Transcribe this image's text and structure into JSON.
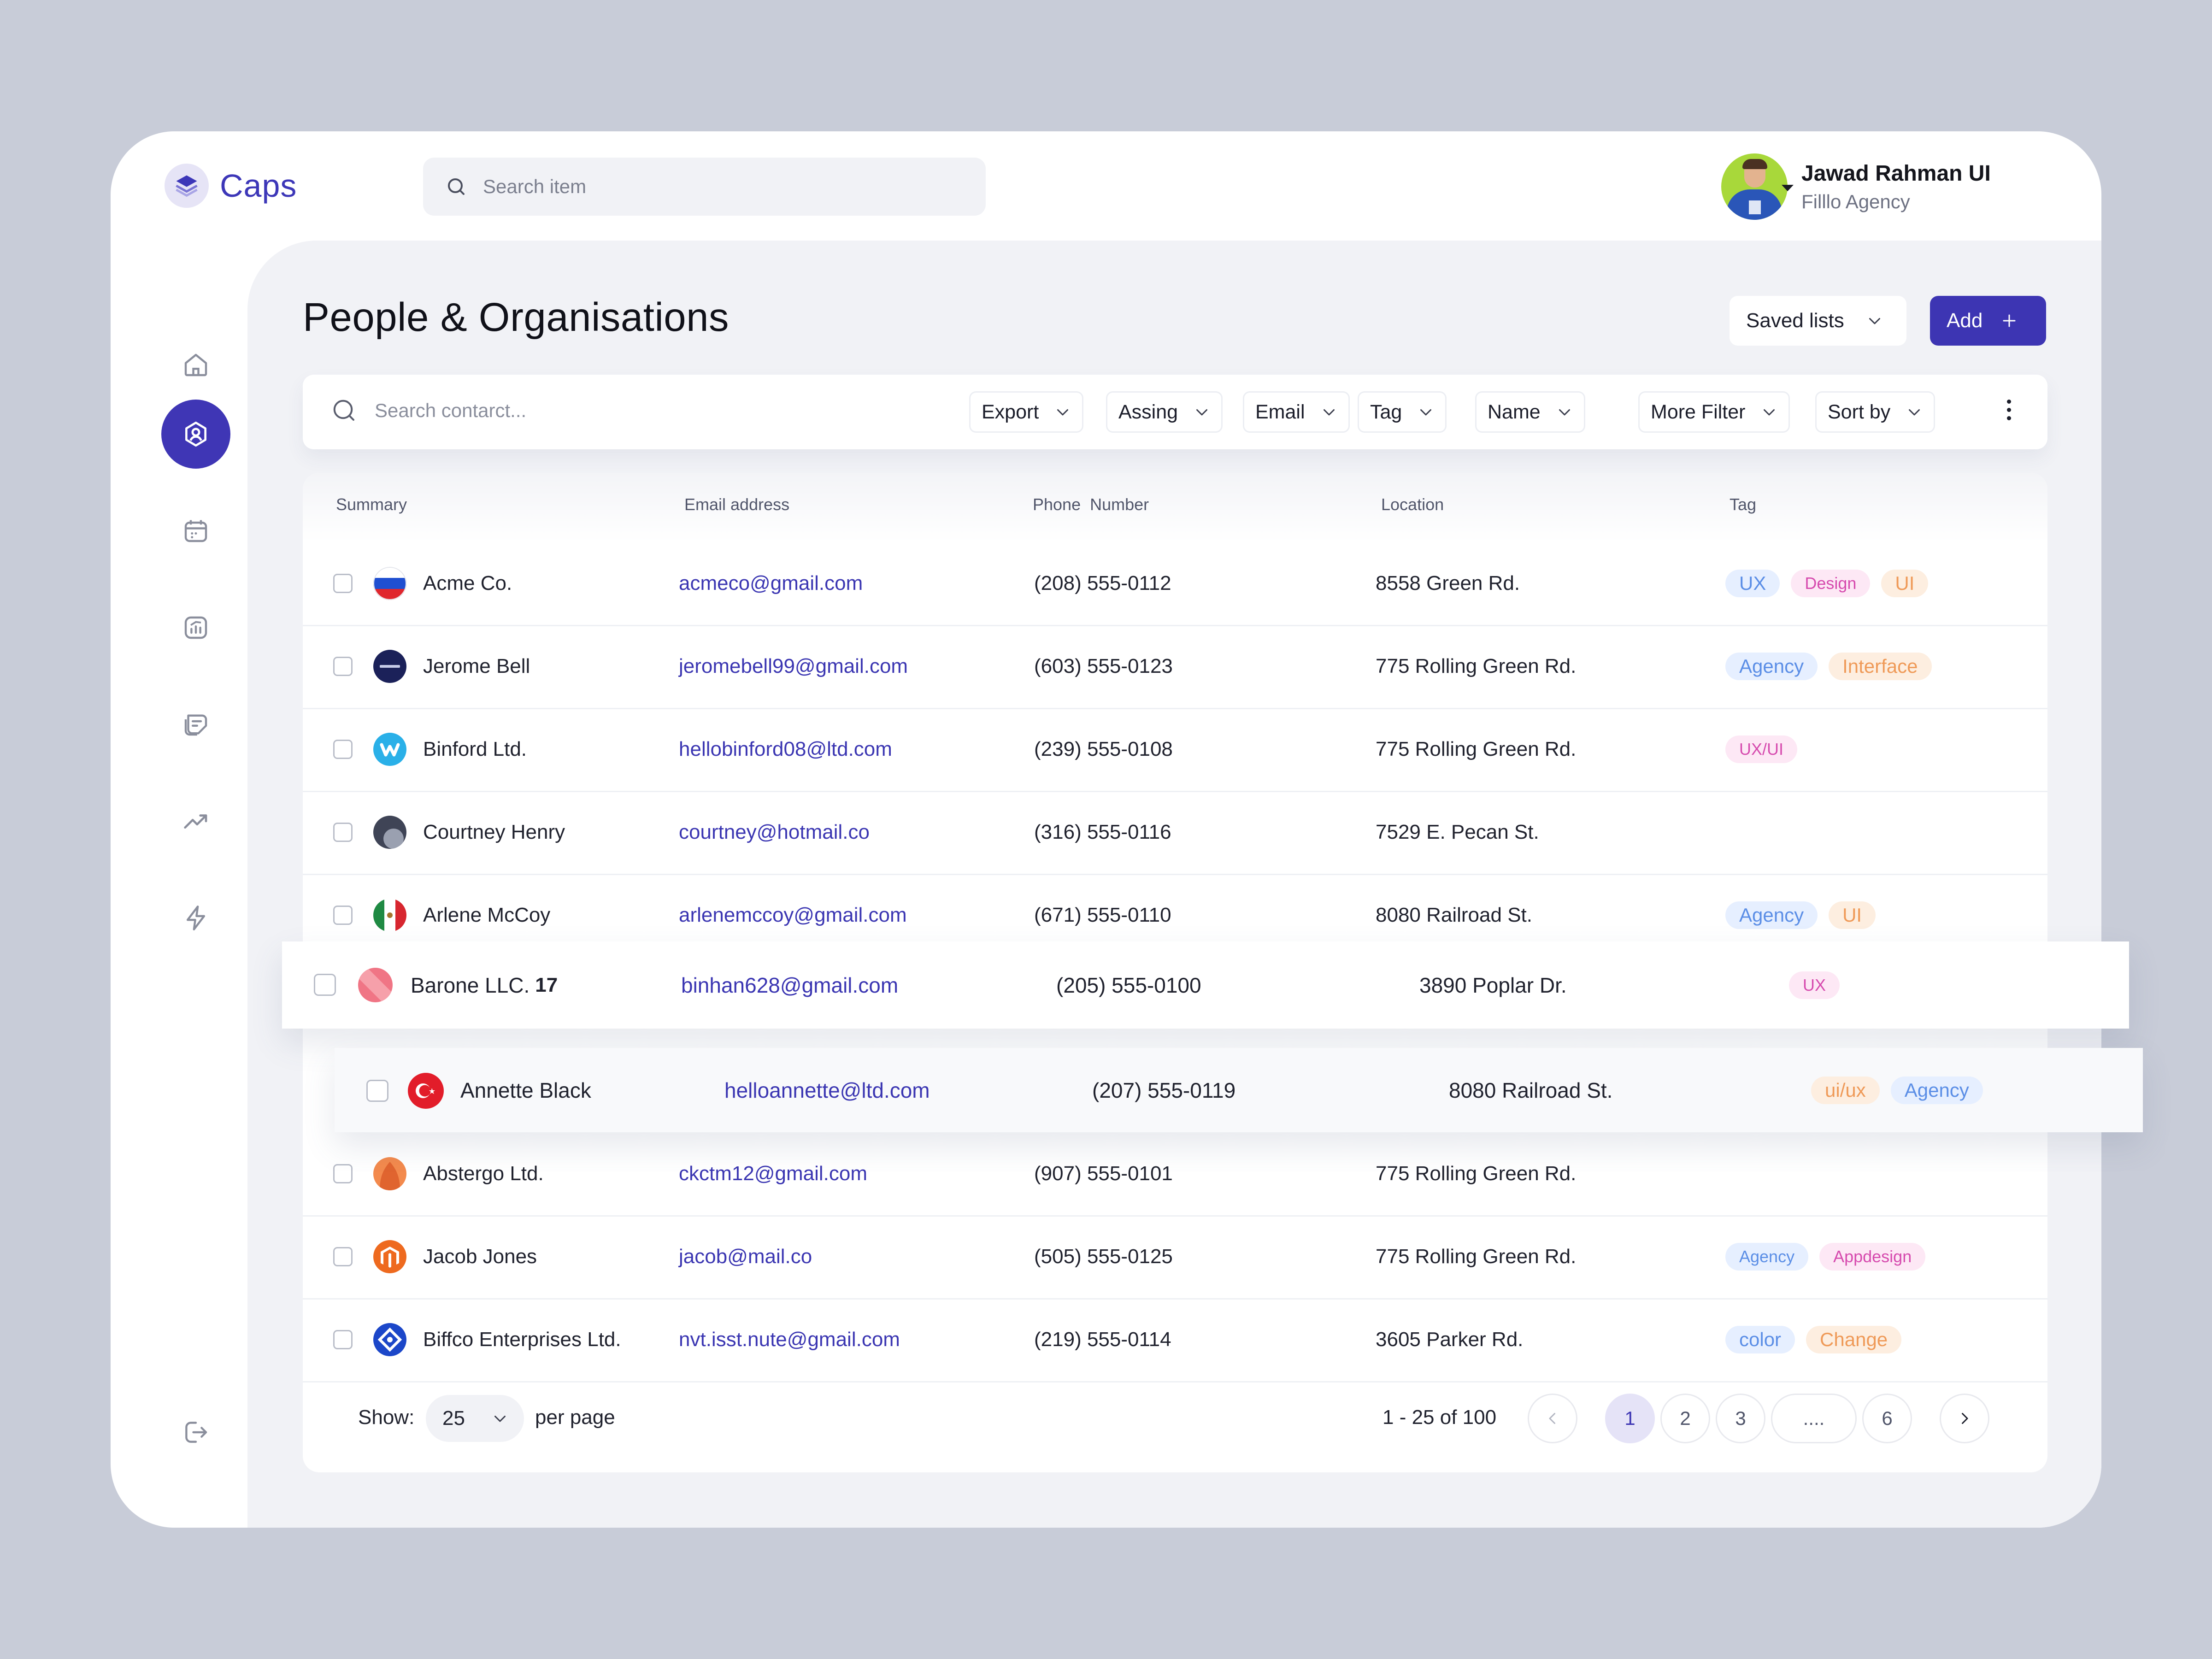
{
  "app": {
    "name": "Caps",
    "accent": "#3f36b5"
  },
  "header": {
    "search_placeholder": "Search item",
    "user": {
      "name": "Jawad Rahman UI",
      "org": "Filllo Agency"
    }
  },
  "sidebar": {
    "items": [
      {
        "icon": "home-icon"
      },
      {
        "icon": "contacts-icon",
        "active": true
      },
      {
        "icon": "calendar-icon"
      },
      {
        "icon": "chart-icon"
      },
      {
        "icon": "notes-icon"
      },
      {
        "icon": "trending-icon"
      },
      {
        "icon": "bolt-icon"
      }
    ],
    "footer_icon": "logout-icon"
  },
  "page": {
    "title": "People & Organisations",
    "saved_lists_label": "Saved lists",
    "add_label": "Add"
  },
  "filters": {
    "search_placeholder": "Search contarct...",
    "buttons": [
      "Export",
      "Assing",
      "Email",
      "Tag",
      "Name",
      "More Filter",
      "Sort by"
    ]
  },
  "table": {
    "columns": [
      "Summary",
      "Email address",
      "Phone  Number",
      "Location",
      "Tag"
    ],
    "rows": [
      {
        "name": "Acme Co.",
        "email": "acmeco@gmail.com",
        "phone": "(208) 555-0112",
        "location": "8558 Green Rd.",
        "tags": [
          "UX",
          "Design",
          "UI"
        ]
      },
      {
        "name": "Jerome Bell",
        "email": "jeromebell99@gmail.com",
        "phone": "(603) 555-0123",
        "location": "775 Rolling Green Rd.",
        "tags": [
          "Agency",
          "Interface"
        ]
      },
      {
        "name": "Binford Ltd.",
        "email": "hellobinford08@ltd.com",
        "phone": "(239) 555-0108",
        "location": "775 Rolling Green Rd.",
        "tags": [
          "UX/UI"
        ]
      },
      {
        "name": "Courtney Henry",
        "email": "courtney@hotmail.co",
        "phone": "(316) 555-0116",
        "location": "7529 E. Pecan St.",
        "tags": []
      },
      {
        "name": "Arlene McCoy",
        "email": "arlenemccoy@gmail.com",
        "phone": "(671) 555-0110",
        "location": "8080 Railroad St.",
        "tags": [
          "Agency",
          "UI"
        ]
      },
      {
        "name": "Barone LLC.",
        "badge": "17",
        "email": "binhan628@gmail.com",
        "phone": "(205) 555-0100",
        "location": "3890 Poplar Dr.",
        "tags": [
          "UX"
        ]
      },
      {
        "name": "Annette Black",
        "email": "helloannette@ltd.com",
        "phone": "(207) 555-0119",
        "location": "8080 Railroad St.",
        "tags": [
          "ui/ux",
          "Agency"
        ]
      },
      {
        "name": "Abstergo Ltd.",
        "email": "ckctm12@gmail.com",
        "phone": "(907) 555-0101",
        "location": "775 Rolling Green Rd.",
        "tags": []
      },
      {
        "name": "Jacob Jones",
        "email": "jacob@mail.co",
        "phone": "(505) 555-0125",
        "location": "775 Rolling Green Rd.",
        "tags": [
          "Agency",
          "Appdesign"
        ]
      },
      {
        "name": "Biffco Enterprises Ltd.",
        "email": "nvt.isst.nute@gmail.com",
        "phone": "(219) 555-0114",
        "location": "3605 Parker Rd.",
        "tags": [
          "color",
          "Change"
        ]
      }
    ]
  },
  "pagination": {
    "show_label": "Show:",
    "per_page_value": "25",
    "per_page_label": "per page",
    "range": "1 - 25 of 100",
    "pages": [
      "1",
      "2",
      "3",
      "....",
      "6"
    ],
    "current": "1"
  }
}
